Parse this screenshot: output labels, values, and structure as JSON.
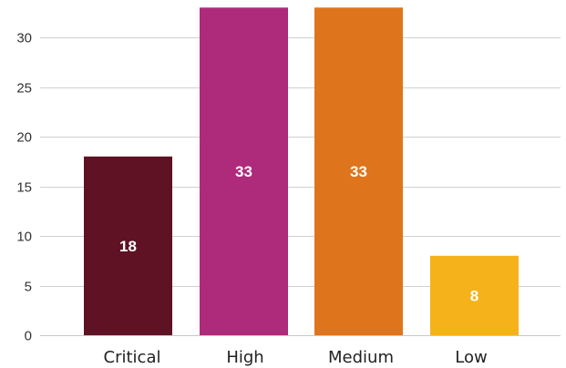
{
  "chart_data": {
    "type": "bar",
    "categories": [
      "Critical",
      "High",
      "Medium",
      "Low"
    ],
    "values": [
      18,
      33,
      33,
      8
    ],
    "data_labels": [
      "18",
      "33",
      "33",
      "8"
    ],
    "colors": [
      "#5e1224",
      "#ae2a7a",
      "#de751c",
      "#f5b21a"
    ],
    "ylim": [
      0,
      33
    ],
    "yticks": [
      0,
      5,
      10,
      15,
      20,
      25,
      30
    ],
    "ytick_labels": [
      "0",
      "5",
      "10",
      "15",
      "20",
      "25",
      "30"
    ],
    "grid": true,
    "legend": "none",
    "title": "",
    "xlabel": "",
    "ylabel": ""
  }
}
